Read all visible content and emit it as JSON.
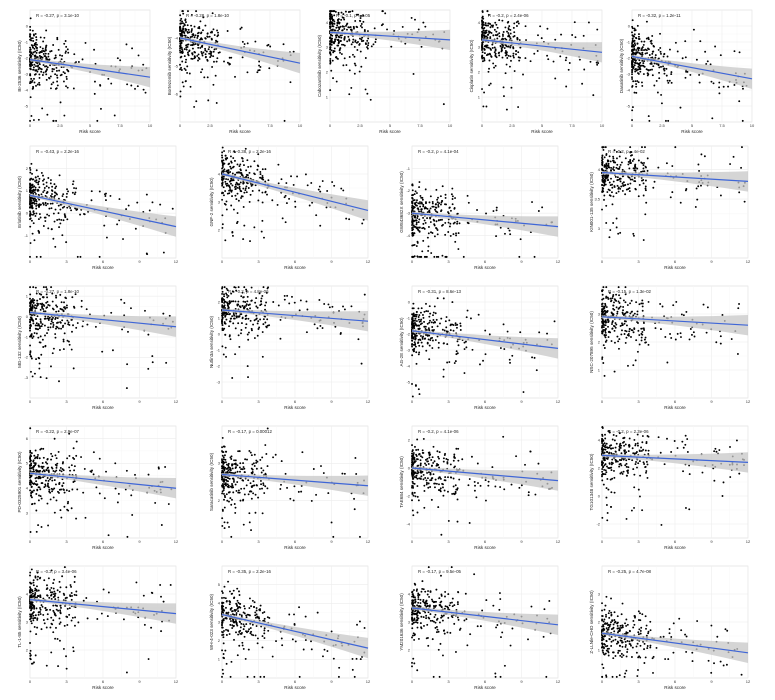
{
  "layout": {
    "rows": [
      {
        "n": 5,
        "top": 10,
        "h": 112,
        "lefts": [
          30,
          180,
          330,
          482,
          632
        ],
        "w": 120
      },
      {
        "n": 4,
        "top": 146,
        "h": 112,
        "lefts": [
          30,
          222,
          412,
          602
        ],
        "w": 146
      },
      {
        "n": 4,
        "top": 286,
        "h": 112,
        "lefts": [
          30,
          222,
          412,
          602
        ],
        "w": 146
      },
      {
        "n": 4,
        "top": 426,
        "h": 112,
        "lefts": [
          30,
          222,
          412,
          602
        ],
        "w": 146
      },
      {
        "n": 4,
        "top": 566,
        "h": 112,
        "lefts": [
          30,
          222,
          412,
          602
        ],
        "w": 146
      }
    ]
  },
  "colors": {
    "points": "#000000",
    "fit_line": "#3f66d6",
    "ci_band": "#c7c7c7"
  },
  "chart_data": [
    {
      "id": "p1",
      "type": "scatter",
      "xlabel": "Risk score",
      "ylabel": "BI-2536 sensitivity (IC50)",
      "annotation": "R = -0.27, p = 3.1e-10",
      "xlim": [
        0,
        10
      ],
      "xticks": [
        0,
        2.5,
        5,
        7.5,
        10
      ],
      "ylim": [
        -6,
        1
      ],
      "yticks": [
        -5,
        -4,
        -3,
        -2,
        -1,
        0
      ],
      "fit": {
        "y_at_xmin": -2.1,
        "y_at_xmax": -3.2
      },
      "seed": 11
    },
    {
      "id": "p2",
      "type": "scatter",
      "xlabel": "Risk score",
      "ylabel": "Bortezomib sensitivity (IC50)",
      "annotation": "R = -0.28, p = 1.8e-10",
      "xlim": [
        0,
        10
      ],
      "xticks": [
        0,
        2.5,
        5,
        7.5,
        10
      ],
      "ylim": [
        -7,
        -3
      ],
      "yticks": [
        -6,
        -5,
        -4
      ],
      "fit": {
        "y_at_xmin": -4.0,
        "y_at_xmax": -4.9
      },
      "seed": 22
    },
    {
      "id": "p3",
      "type": "scatter",
      "xlabel": "Risk score",
      "ylabel": "Cabozantinib sensitivity (IC50)",
      "annotation": "R = -0.1, p = 0.05",
      "xlim": [
        0,
        10
      ],
      "xticks": [
        0,
        2.5,
        5,
        7.5,
        10
      ],
      "ylim": [
        0,
        4.5
      ],
      "yticks": [
        1,
        2,
        3,
        4
      ],
      "fit": {
        "y_at_xmin": 3.6,
        "y_at_xmax": 3.3
      },
      "seed": 33
    },
    {
      "id": "p4",
      "type": "scatter",
      "xlabel": "Risk score",
      "ylabel": "Cisplatin sensitivity (IC50)",
      "annotation": "R = -0.2, p = 2.4e-06",
      "xlim": [
        0,
        10
      ],
      "xticks": [
        0,
        2.5,
        5,
        7.5,
        10
      ],
      "ylim": [
        0,
        4.5
      ],
      "yticks": [
        1,
        2,
        3,
        4
      ],
      "fit": {
        "y_at_xmin": 3.3,
        "y_at_xmax": 2.8
      },
      "seed": 44
    },
    {
      "id": "p5",
      "type": "scatter",
      "xlabel": "Risk score",
      "ylabel": "Dasatinib sensitivity (IC50)",
      "annotation": "R = -0.32, p = 1.2e-11",
      "xlim": [
        0,
        10
      ],
      "xticks": [
        0,
        2.5,
        5,
        7.5,
        10
      ],
      "ylim": [
        -6,
        1
      ],
      "yticks": [
        -5,
        -4,
        -3,
        -2,
        -1,
        0
      ],
      "fit": {
        "y_at_xmin": -1.9,
        "y_at_xmax": -3.3
      },
      "seed": 55
    },
    {
      "id": "p6",
      "type": "scatter",
      "xlabel": "Risk score",
      "ylabel": "Erlotinib sensitivity (IC50)",
      "annotation": "R = -0.43, p = 2.2e-16",
      "xlim": [
        0,
        12
      ],
      "xticks": [
        0,
        3,
        6,
        9,
        12
      ],
      "ylim": [
        -2,
        3
      ],
      "yticks": [
        -1,
        0,
        1,
        2
      ],
      "fit": {
        "y_at_xmin": 0.8,
        "y_at_xmax": -0.6
      },
      "seed": 66
    },
    {
      "id": "p7",
      "type": "scatter",
      "xlabel": "Risk score",
      "ylabel": "GNF-2 sensitivity (IC50)",
      "annotation": "R = -0.38, p = 2.2e-16",
      "xlim": [
        0,
        12
      ],
      "xticks": [
        0,
        3,
        6,
        9,
        12
      ],
      "ylim": [
        1,
        5
      ],
      "yticks": [
        2,
        3,
        4
      ],
      "fit": {
        "y_at_xmin": 4.0,
        "y_at_xmax": 2.7
      },
      "seed": 77
    },
    {
      "id": "p8",
      "type": "scatter",
      "xlabel": "Risk score",
      "ylabel": "GW843682X sensitivity (IC50)",
      "annotation": "R = -0.2, p = 4.1e-04",
      "xlim": [
        0,
        12
      ],
      "xticks": [
        0,
        3,
        6,
        9,
        12
      ],
      "ylim": [
        -5,
        0
      ],
      "yticks": [
        -4,
        -3,
        -2,
        -1
      ],
      "fit": {
        "y_at_xmin": -3.0,
        "y_at_xmax": -3.6
      },
      "seed": 88
    },
    {
      "id": "p9",
      "type": "scatter",
      "xlabel": "Risk score",
      "ylabel": "KIN001-135 sensitivity (IC50)",
      "annotation": "R = -0.2, p = 4e-02",
      "xlim": [
        0,
        12
      ],
      "xticks": [
        0,
        3,
        6,
        9,
        12
      ],
      "ylim": [
        2.5,
        4.4
      ],
      "yticks": [
        3.0,
        3.5,
        4.0
      ],
      "fit": {
        "y_at_xmin": 3.95,
        "y_at_xmax": 3.8
      },
      "seed": 99
    },
    {
      "id": "p10",
      "type": "scatter",
      "xlabel": "Risk score",
      "ylabel": "MG-132 sensitivity (IC50)",
      "annotation": "R = -0.27, p = 1.8e-10",
      "xlim": [
        0,
        12
      ],
      "xticks": [
        0,
        3,
        6,
        9,
        12
      ],
      "ylim": [
        -4,
        1.5
      ],
      "yticks": [
        -3,
        -2,
        -1,
        0,
        1
      ],
      "fit": {
        "y_at_xmin": 0.2,
        "y_at_xmax": -0.5
      },
      "seed": 111
    },
    {
      "id": "p11",
      "type": "scatter",
      "xlabel": "Risk score",
      "ylabel": "Nutlin3a sensitivity (IC50)",
      "annotation": "R = -0.2, p = 4.8e-06",
      "xlim": [
        0,
        12
      ],
      "xticks": [
        0,
        3,
        6,
        9,
        12
      ],
      "ylim": [
        -4,
        3
      ],
      "yticks": [
        -3,
        -2,
        -1,
        0,
        1,
        2
      ],
      "fit": {
        "y_at_xmin": 1.5,
        "y_at_xmax": 0.8
      },
      "seed": 122
    },
    {
      "id": "p12",
      "type": "scatter",
      "xlabel": "Risk score",
      "ylabel": "AG-2E sensitivity (IC50)",
      "annotation": "R = -0.31, p = 8.6e-13",
      "xlim": [
        0,
        12
      ],
      "xticks": [
        0,
        3,
        6,
        9,
        12
      ],
      "ylim": [
        -6,
        1
      ],
      "yticks": [
        -5,
        -4,
        -3,
        -2,
        -1,
        0
      ],
      "fit": {
        "y_at_xmin": -1.8,
        "y_at_xmax": -2.9
      },
      "seed": 133
    },
    {
      "id": "p13",
      "type": "scatter",
      "xlabel": "Risk score",
      "ylabel": "NSC-207895 sensitivity (IC50)",
      "annotation": "R = -0.15, p = 1.3e-02",
      "xlim": [
        0,
        12
      ],
      "xticks": [
        0,
        3,
        6,
        9,
        12
      ],
      "ylim": [
        0,
        4
      ],
      "yticks": [
        1,
        2,
        3
      ],
      "fit": {
        "y_at_xmin": 2.9,
        "y_at_xmax": 2.6
      },
      "seed": 144
    },
    {
      "id": "p14",
      "type": "scatter",
      "xlabel": "Risk score",
      "ylabel": "PD-0325901 sensitivity (IC50)",
      "annotation": "R = -0.22, p = 2.9e-07",
      "xlim": [
        0,
        12
      ],
      "xticks": [
        0,
        3,
        6,
        9,
        12
      ],
      "ylim": [
        2,
        6.5
      ],
      "yticks": [
        3,
        4,
        5,
        6
      ],
      "fit": {
        "y_at_xmin": 4.6,
        "y_at_xmax": 4.0
      },
      "seed": 155
    },
    {
      "id": "p15",
      "type": "scatter",
      "xlabel": "Risk score",
      "ylabel": "Saracatinib sensitivity (IC50)",
      "annotation": "R = -0.17, p = 0.00012",
      "xlim": [
        0,
        12
      ],
      "xticks": [
        0,
        3,
        6,
        9,
        12
      ],
      "ylim": [
        1,
        4
      ],
      "yticks": [
        2,
        3
      ],
      "fit": {
        "y_at_xmin": 2.7,
        "y_at_xmax": 2.4
      },
      "seed": 166
    },
    {
      "id": "p16",
      "type": "scatter",
      "xlabel": "Risk score",
      "ylabel": "TAE684 sensitivity (IC50)",
      "annotation": "R = -0.2, p = 4.1e-06",
      "xlim": [
        0,
        12
      ],
      "xticks": [
        0,
        3,
        6,
        9,
        12
      ],
      "ylim": [
        -5,
        3
      ],
      "yticks": [
        -4,
        -2,
        0,
        2
      ],
      "fit": {
        "y_at_xmin": 0.0,
        "y_at_xmax": -0.9
      },
      "seed": 177
    },
    {
      "id": "p17",
      "type": "scatter",
      "xlabel": "Risk score",
      "ylabel": "TG101348 sensitivity (IC50)",
      "annotation": "R = -0.2, p = 2.3e-06",
      "xlim": [
        0,
        12
      ],
      "xticks": [
        0,
        3,
        6,
        9,
        12
      ],
      "ylim": [
        -3,
        5
      ],
      "yticks": [
        -2,
        0,
        2,
        4
      ],
      "fit": {
        "y_at_xmin": 2.9,
        "y_at_xmax": 2.4
      },
      "seed": 188
    },
    {
      "id": "p18",
      "type": "scatter",
      "xlabel": "Risk score",
      "ylabel": "TL-1-85 sensitivity (IC50)",
      "annotation": "R = -0.2, p = 3.4e-06",
      "xlim": [
        0,
        12
      ],
      "xticks": [
        0,
        3,
        6,
        9,
        12
      ],
      "ylim": [
        1,
        5
      ],
      "yticks": [
        2,
        3,
        4
      ],
      "fit": {
        "y_at_xmin": 3.8,
        "y_at_xmax": 3.3
      },
      "seed": 199
    },
    {
      "id": "p19",
      "type": "scatter",
      "xlabel": "Risk score",
      "ylabel": "WH-4-023 sensitivity (IC50)",
      "annotation": "R = -0.35, p = 2.2e-16",
      "xlim": [
        0,
        12
      ],
      "xticks": [
        0,
        3,
        6,
        9,
        12
      ],
      "ylim": [
        0,
        6
      ],
      "yticks": [
        1,
        2,
        3,
        4,
        5
      ],
      "fit": {
        "y_at_xmin": 3.4,
        "y_at_xmax": 1.6
      },
      "seed": 211
    },
    {
      "id": "p20",
      "type": "scatter",
      "xlabel": "Risk score",
      "ylabel": "YM201636 sensitivity (IC50)",
      "annotation": "R = -0.17, p = 9.5e-05",
      "xlim": [
        0,
        12
      ],
      "xticks": [
        0,
        3,
        6,
        9,
        12
      ],
      "ylim": [
        1,
        5
      ],
      "yticks": [
        2,
        3,
        4
      ],
      "fit": {
        "y_at_xmin": 3.5,
        "y_at_xmax": 2.9
      },
      "seed": 222
    },
    {
      "id": "p21",
      "type": "scatter",
      "xlabel": "Risk score",
      "ylabel": "Z-LLNle-CHO sensitivity (IC50)",
      "annotation": "R = -0.25, p = 4.7e-08",
      "xlim": [
        0,
        12
      ],
      "xticks": [
        0,
        3,
        6,
        9,
        12
      ],
      "ylim": [
        0,
        4
      ],
      "yticks": [
        1,
        2,
        3
      ],
      "fit": {
        "y_at_xmin": 1.6,
        "y_at_xmax": 0.9
      },
      "seed": 233
    }
  ]
}
